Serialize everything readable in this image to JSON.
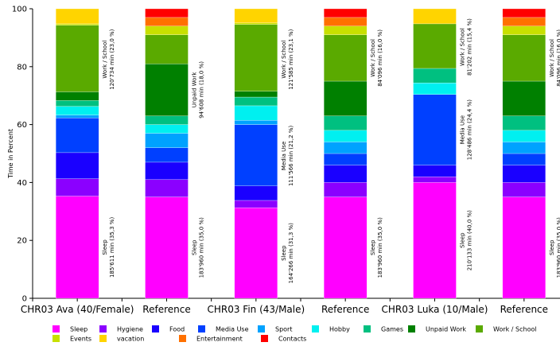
{
  "chart_data": {
    "type": "bar",
    "stacked": true,
    "ylabel": "Time in Percent",
    "ylim": [
      0,
      100
    ],
    "yticks": [
      0,
      20,
      40,
      60,
      80,
      100
    ],
    "categories": [
      "CHR03 Ava (40/Female)",
      "Reference",
      "CHR03 Fin (43/Male)",
      "Reference",
      "CHR03 Luka (10/Male)",
      "Reference"
    ],
    "series": [
      {
        "name": "Sleep",
        "color": "#ff00ff",
        "values": [
          35.3,
          35.0,
          31.3,
          35.0,
          40.0,
          35.0
        ]
      },
      {
        "name": "Hygiene",
        "color": "#8b00ff",
        "values": [
          6.0,
          6.0,
          2.5,
          5.0,
          2.0,
          5.0
        ]
      },
      {
        "name": "Food",
        "color": "#1a00ff",
        "values": [
          9.0,
          6.0,
          5.0,
          6.0,
          4.0,
          6.0
        ]
      },
      {
        "name": "Media Use",
        "color": "#0040ff",
        "values": [
          12.0,
          5.0,
          21.2,
          4.0,
          24.4,
          4.0
        ]
      },
      {
        "name": "Sport",
        "color": "#00a2ff",
        "values": [
          1.0,
          5.0,
          1.5,
          4.0,
          0.0,
          4.0
        ]
      },
      {
        "name": "Hobby",
        "color": "#00f0f0",
        "values": [
          3.0,
          3.0,
          5.0,
          4.0,
          4.0,
          4.0
        ]
      },
      {
        "name": "Games",
        "color": "#00c080",
        "values": [
          2.0,
          3.0,
          3.0,
          5.0,
          5.0,
          5.0
        ]
      },
      {
        "name": "Unpaid Work",
        "color": "#008000",
        "values": [
          3.0,
          18.0,
          2.0,
          12.0,
          0.0,
          12.0
        ]
      },
      {
        "name": "Work / School",
        "color": "#5aaa00",
        "values": [
          23.0,
          10.0,
          23.1,
          16.0,
          15.4,
          16.0
        ]
      },
      {
        "name": "Events",
        "color": "#c8e000",
        "values": [
          0.5,
          3.0,
          0.5,
          3.0,
          0.0,
          3.0
        ]
      },
      {
        "name": "vacation",
        "color": "#ffd400",
        "values": [
          5.2,
          0.0,
          4.9,
          0.0,
          5.2,
          0.0
        ]
      },
      {
        "name": "Entertainment",
        "color": "#ff7000",
        "values": [
          0.0,
          3.0,
          0.0,
          3.0,
          0.0,
          3.0
        ]
      },
      {
        "name": "Contacts",
        "color": "#ff0000",
        "values": [
          0.0,
          3.0,
          0.0,
          3.0,
          0.0,
          3.0
        ]
      }
    ],
    "annotations": [
      {
        "bar": 0,
        "label": "Sleep",
        "detail": "185'611 min (35,3 %)",
        "at": 17.6
      },
      {
        "bar": 0,
        "label": "Work / School",
        "detail": "120'734 min (23,0 %)",
        "at": 82.5
      },
      {
        "bar": 1,
        "label": "Sleep",
        "detail": "183'960 min (35,0 %)",
        "at": 17.5
      },
      {
        "bar": 1,
        "label": "Unpaid Work",
        "detail": "94'608 min (18,0 %)",
        "at": 72.0
      },
      {
        "bar": 2,
        "label": "Sleep",
        "detail": "164'266 min (31,3 %)",
        "at": 15.6
      },
      {
        "bar": 2,
        "label": "Media Use",
        "detail": "111'566 min (21,2 %)",
        "at": 49.2
      },
      {
        "bar": 2,
        "label": "Work / School",
        "detail": "121'585 min (23,1 %)",
        "at": 82.5
      },
      {
        "bar": 3,
        "label": "Sleep",
        "detail": "183'960 min (35,0 %)",
        "at": 17.5
      },
      {
        "bar": 3,
        "label": "Work / School",
        "detail": "84'096 min (16,0 %)",
        "at": 83.0
      },
      {
        "bar": 4,
        "label": "Sleep",
        "detail": "210'133 min (40,0 %)",
        "at": 20.0
      },
      {
        "bar": 4,
        "label": "Media Use",
        "detail": "128'486 min (24,4 %)",
        "at": 58.2
      },
      {
        "bar": 4,
        "label": "Work / School",
        "detail": "81'202 min (15,4 %)",
        "at": 86.8
      },
      {
        "bar": 5,
        "label": "Sleep",
        "detail": "183'960 min (35,0 %)",
        "at": 17.5
      },
      {
        "bar": 5,
        "label": "Work / School",
        "detail": "84'096 min (16,0 %)",
        "at": 83.0
      }
    ],
    "grid": false,
    "legend": "bottom"
  }
}
